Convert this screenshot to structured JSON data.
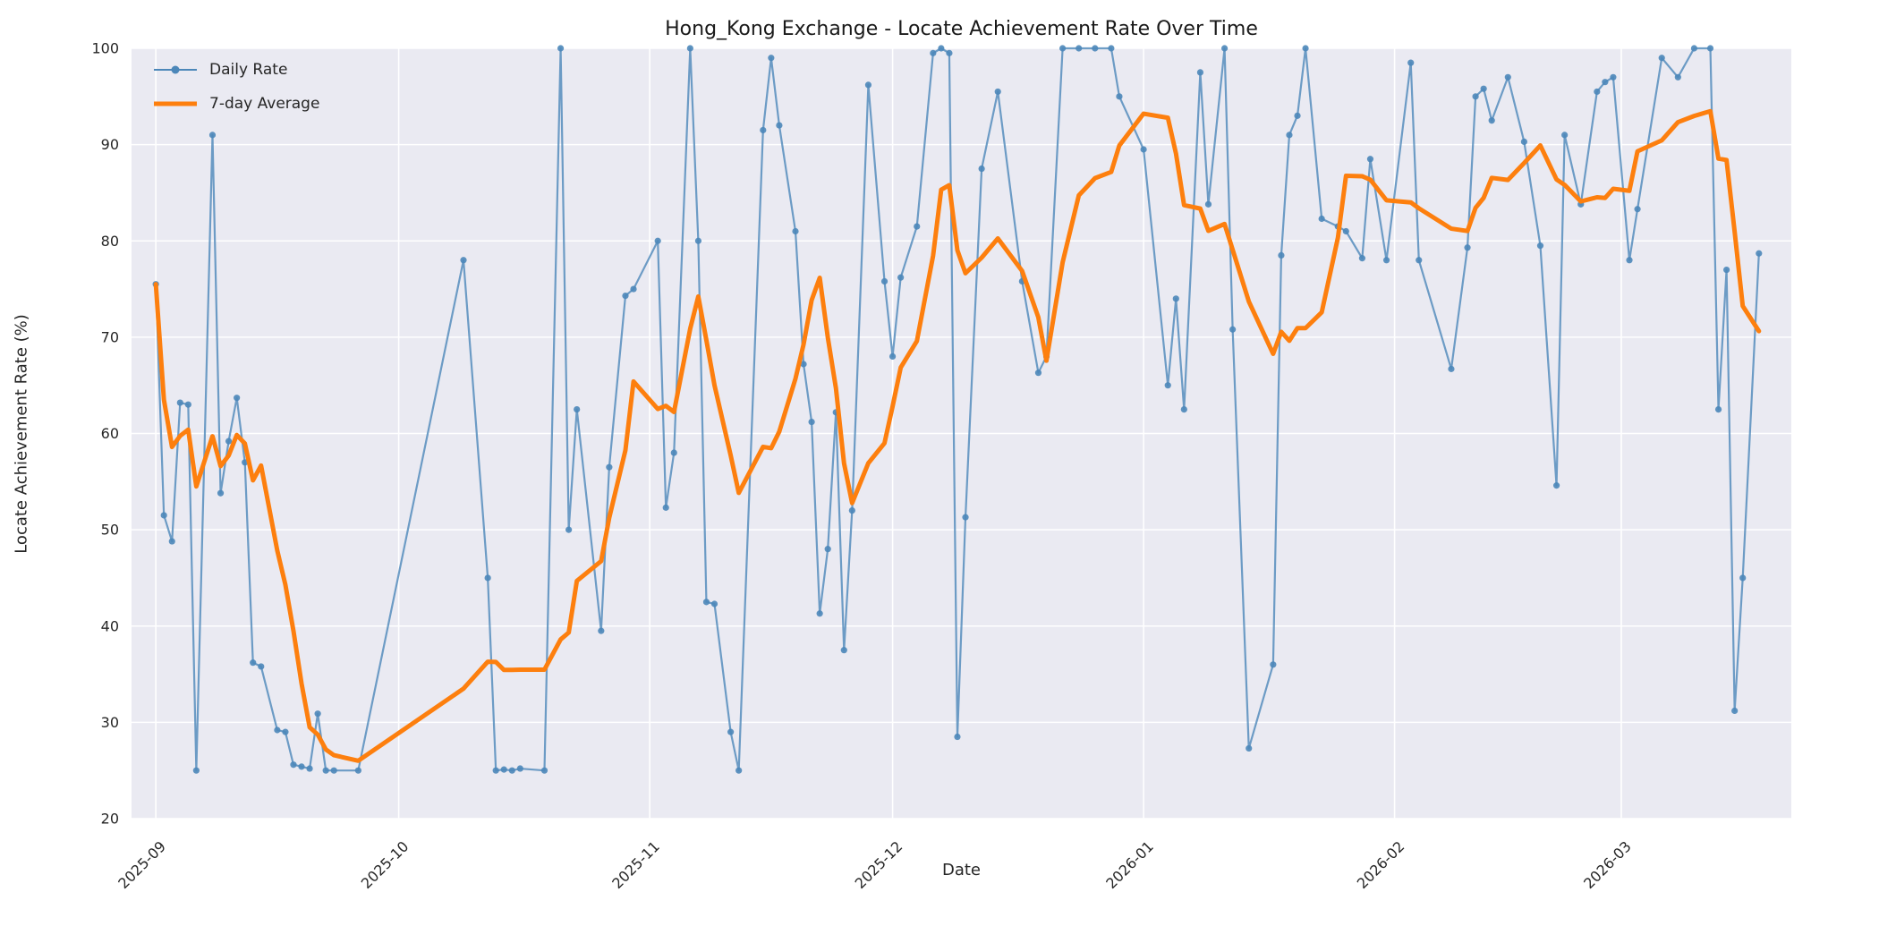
{
  "chart_data": {
    "type": "line",
    "title": "Hong_Kong Exchange - Locate Achievement Rate Over Time",
    "xlabel": "Date",
    "ylabel": "Locate Achievement Rate (%)",
    "ylim": [
      20,
      100
    ],
    "yticks": [
      20,
      30,
      40,
      50,
      60,
      70,
      80,
      90,
      100
    ],
    "xticks": [
      {
        "label": "2025-09",
        "date": "2025-09-01"
      },
      {
        "label": "2025-10",
        "date": "2025-10-01"
      },
      {
        "label": "2025-11",
        "date": "2025-11-01"
      },
      {
        "label": "2025-12",
        "date": "2025-12-01"
      },
      {
        "label": "2026-01",
        "date": "2026-01-01"
      },
      {
        "label": "2026-02",
        "date": "2026-02-01"
      },
      {
        "label": "2026-03",
        "date": "2026-03-01"
      }
    ],
    "x_domain": [
      "2025-08-29",
      "2026-03-22"
    ],
    "grid": true,
    "legend_position": "upper left",
    "colors": {
      "plot_bg": "#eaeaf2",
      "grid": "#ffffff",
      "daily": "#4c87b9",
      "average": "#fd7f0e",
      "text": "#262626"
    },
    "series": [
      {
        "name": "Daily Rate",
        "style": "line+markers",
        "color": "#4c87b9",
        "points": [
          [
            "2025-09-01",
            75.5
          ],
          [
            "2025-09-02",
            51.5
          ],
          [
            "2025-09-03",
            48.8
          ],
          [
            "2025-09-04",
            63.2
          ],
          [
            "2025-09-05",
            63.0
          ],
          [
            "2025-09-06",
            25.0
          ],
          [
            "2025-09-08",
            91.0
          ],
          [
            "2025-09-09",
            53.8
          ],
          [
            "2025-09-10",
            59.2
          ],
          [
            "2025-09-11",
            63.7
          ],
          [
            "2025-09-12",
            57.0
          ],
          [
            "2025-09-13",
            36.2
          ],
          [
            "2025-09-14",
            35.8
          ],
          [
            "2025-09-16",
            29.2
          ],
          [
            "2025-09-17",
            29.0
          ],
          [
            "2025-09-18",
            25.6
          ],
          [
            "2025-09-19",
            25.4
          ],
          [
            "2025-09-20",
            25.2
          ],
          [
            "2025-09-21",
            30.9
          ],
          [
            "2025-09-22",
            25.0
          ],
          [
            "2025-09-23",
            25.0
          ],
          [
            "2025-09-26",
            25.0
          ],
          [
            "2025-10-09",
            78.0
          ],
          [
            "2025-10-12",
            45.0
          ],
          [
            "2025-10-13",
            25.0
          ],
          [
            "2025-10-14",
            25.1
          ],
          [
            "2025-10-15",
            25.0
          ],
          [
            "2025-10-16",
            25.2
          ],
          [
            "2025-10-19",
            25.0
          ],
          [
            "2025-10-21",
            100.0
          ],
          [
            "2025-10-22",
            50.0
          ],
          [
            "2025-10-23",
            62.5
          ],
          [
            "2025-10-26",
            39.5
          ],
          [
            "2025-10-27",
            56.5
          ],
          [
            "2025-10-29",
            74.3
          ],
          [
            "2025-10-30",
            75.0
          ],
          [
            "2025-11-02",
            80.0
          ],
          [
            "2025-11-03",
            52.3
          ],
          [
            "2025-11-04",
            58.0
          ],
          [
            "2025-11-06",
            100.0
          ],
          [
            "2025-11-07",
            80.0
          ],
          [
            "2025-11-08",
            42.5
          ],
          [
            "2025-11-09",
            42.3
          ],
          [
            "2025-11-11",
            29.0
          ],
          [
            "2025-11-12",
            25.0
          ],
          [
            "2025-11-15",
            91.5
          ],
          [
            "2025-11-16",
            99.0
          ],
          [
            "2025-11-17",
            92.0
          ],
          [
            "2025-11-19",
            81.0
          ],
          [
            "2025-11-20",
            67.2
          ],
          [
            "2025-11-21",
            61.2
          ],
          [
            "2025-11-22",
            41.3
          ],
          [
            "2025-11-23",
            48.0
          ],
          [
            "2025-11-24",
            62.2
          ],
          [
            "2025-11-25",
            37.5
          ],
          [
            "2025-11-26",
            52.0
          ],
          [
            "2025-11-28",
            96.2
          ],
          [
            "2025-11-30",
            75.8
          ],
          [
            "2025-12-01",
            68.0
          ],
          [
            "2025-12-02",
            76.2
          ],
          [
            "2025-12-04",
            81.5
          ],
          [
            "2025-12-06",
            99.5
          ],
          [
            "2025-12-07",
            100.0
          ],
          [
            "2025-12-08",
            99.5
          ],
          [
            "2025-12-09",
            28.5
          ],
          [
            "2025-12-10",
            51.3
          ],
          [
            "2025-12-12",
            87.5
          ],
          [
            "2025-12-14",
            95.5
          ],
          [
            "2025-12-17",
            75.8
          ],
          [
            "2025-12-19",
            66.3
          ],
          [
            "2025-12-20",
            68.0
          ],
          [
            "2025-12-22",
            100.0
          ],
          [
            "2025-12-24",
            100.0
          ],
          [
            "2025-12-26",
            100.0
          ],
          [
            "2025-12-28",
            100.0
          ],
          [
            "2025-12-29",
            95.0
          ],
          [
            "2026-01-01",
            89.5
          ],
          [
            "2026-01-04",
            65.0
          ],
          [
            "2026-01-05",
            74.0
          ],
          [
            "2026-01-06",
            62.5
          ],
          [
            "2026-01-08",
            97.5
          ],
          [
            "2026-01-09",
            83.8
          ],
          [
            "2026-01-11",
            100.0
          ],
          [
            "2026-01-12",
            70.8
          ],
          [
            "2026-01-14",
            27.3
          ],
          [
            "2026-01-17",
            36.0
          ],
          [
            "2026-01-18",
            78.5
          ],
          [
            "2026-01-19",
            91.0
          ],
          [
            "2026-01-20",
            93.0
          ],
          [
            "2026-01-21",
            100.0
          ],
          [
            "2026-01-23",
            82.3
          ],
          [
            "2026-01-25",
            81.5
          ],
          [
            "2026-01-26",
            81.0
          ],
          [
            "2026-01-28",
            78.2
          ],
          [
            "2026-01-29",
            88.5
          ],
          [
            "2026-01-31",
            78.0
          ],
          [
            "2026-02-03",
            98.5
          ],
          [
            "2026-02-04",
            78.0
          ],
          [
            "2026-02-08",
            66.7
          ],
          [
            "2026-02-10",
            79.3
          ],
          [
            "2026-02-11",
            95.0
          ],
          [
            "2026-02-12",
            95.8
          ],
          [
            "2026-02-13",
            92.5
          ],
          [
            "2026-02-15",
            97.0
          ],
          [
            "2026-02-17",
            90.3
          ],
          [
            "2026-02-19",
            79.5
          ],
          [
            "2026-02-21",
            54.6
          ],
          [
            "2026-02-22",
            91.0
          ],
          [
            "2026-02-24",
            83.8
          ],
          [
            "2026-02-26",
            95.5
          ],
          [
            "2026-02-27",
            96.5
          ],
          [
            "2026-02-28",
            97.0
          ],
          [
            "2026-03-02",
            78.0
          ],
          [
            "2026-03-03",
            83.3
          ],
          [
            "2026-03-06",
            99.0
          ],
          [
            "2026-03-08",
            97.0
          ],
          [
            "2026-03-10",
            100.0
          ],
          [
            "2026-03-12",
            100.0
          ],
          [
            "2026-03-13",
            62.5
          ],
          [
            "2026-03-14",
            77.0
          ],
          [
            "2026-03-15",
            31.2
          ],
          [
            "2026-03-16",
            45.0
          ],
          [
            "2026-03-18",
            78.7
          ]
        ]
      },
      {
        "name": "7-day Average",
        "style": "line",
        "color": "#fd7f0e",
        "derived_from": "Daily Rate",
        "window": 7
      }
    ]
  }
}
